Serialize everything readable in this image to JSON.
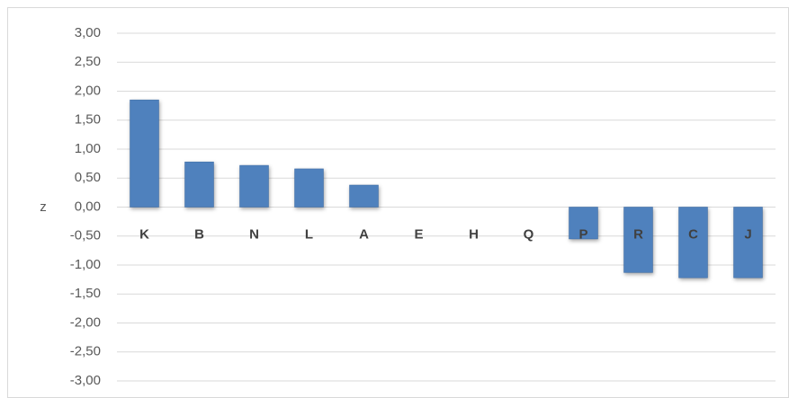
{
  "chart_data": {
    "type": "bar",
    "ylabel": "z",
    "categories": [
      "K",
      "B",
      "N",
      "L",
      "A",
      "E",
      "H",
      "Q",
      "P",
      "R",
      "C",
      "J"
    ],
    "values": [
      1.85,
      0.78,
      0.72,
      0.66,
      0.38,
      0,
      0,
      0,
      -0.55,
      -1.13,
      -1.22,
      -1.22
    ],
    "color": "#4f81bd",
    "ylim": [
      -3,
      3
    ],
    "yticks": [
      {
        "value": -3,
        "label": "-3,00"
      },
      {
        "value": -2.5,
        "label": "-2,50"
      },
      {
        "value": -2,
        "label": "-2,00"
      },
      {
        "value": -1.5,
        "label": "-1,50"
      },
      {
        "value": -1,
        "label": "-1,00"
      },
      {
        "value": -0.5,
        "label": "-0,50"
      },
      {
        "value": 0,
        "label": "0,00"
      },
      {
        "value": 0.5,
        "label": "0,50"
      },
      {
        "value": 1,
        "label": "1,00"
      },
      {
        "value": 1.5,
        "label": "1,50"
      },
      {
        "value": 2,
        "label": "2,00"
      },
      {
        "value": 2.5,
        "label": "2,50"
      },
      {
        "value": 3,
        "label": "3,00"
      }
    ],
    "grid": true
  }
}
